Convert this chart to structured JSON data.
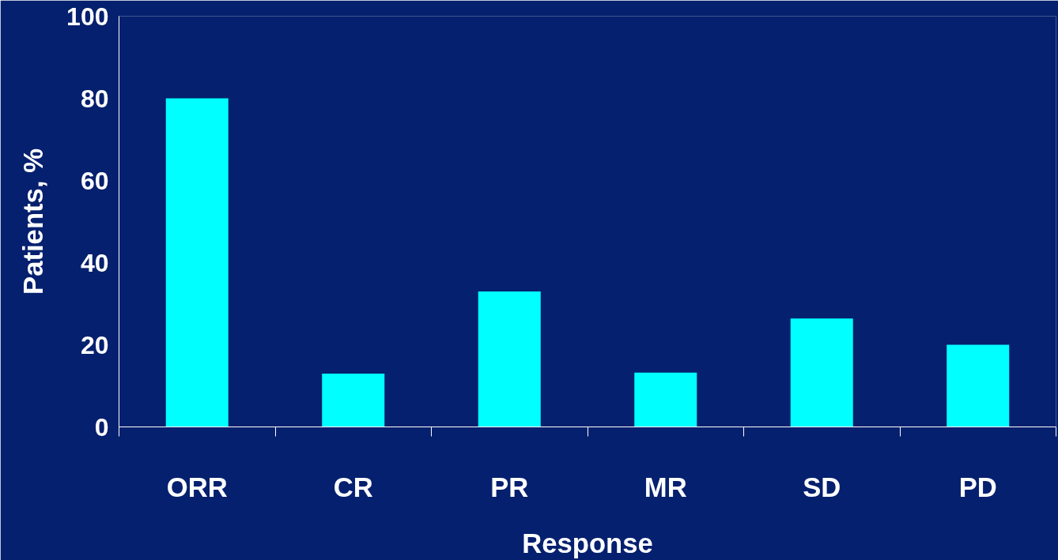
{
  "chart_data": {
    "type": "bar",
    "xlabel": "Response",
    "ylabel": "Patients, %",
    "categories": [
      "ORR",
      "CR",
      "PR",
      "MR",
      "SD",
      "PD"
    ],
    "values": [
      80,
      13,
      33,
      13.2,
      26.4,
      20
    ],
    "color": "#00ffff",
    "ylim": [
      0,
      100
    ],
    "yticks": [
      0,
      20,
      40,
      60,
      80,
      100
    ],
    "grid": false
  }
}
